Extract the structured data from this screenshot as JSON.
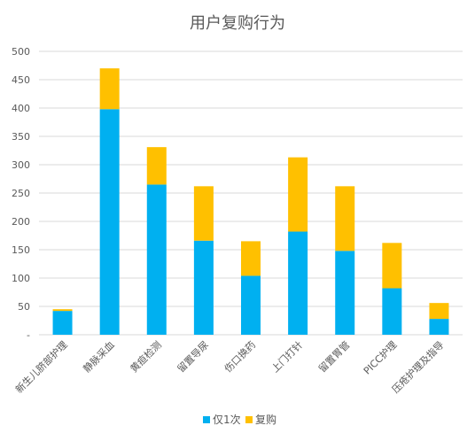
{
  "chart_data": {
    "type": "bar",
    "stacked": true,
    "title": "用户复购行为",
    "categories": [
      "新生儿脐部护理",
      "静脉采血",
      "黄疸检测",
      "留置导尿",
      "伤口换药",
      "上门打针",
      "留置胃管",
      "PICC护理",
      "压疮护理及指导"
    ],
    "series": [
      {
        "name": "仅1次",
        "color": "#00B0F0",
        "values": [
          42,
          398,
          265,
          166,
          104,
          182,
          148,
          82,
          28
        ]
      },
      {
        "name": "复购",
        "color": "#FFC000",
        "values": [
          3,
          72,
          66,
          96,
          61,
          131,
          114,
          80,
          28
        ]
      }
    ],
    "ylim": [
      0,
      500
    ],
    "yticks": [
      "-",
      "50",
      "100",
      "150",
      "200",
      "250",
      "300",
      "350",
      "400",
      "450",
      "500"
    ],
    "grid": true,
    "legend_position": "bottom"
  }
}
